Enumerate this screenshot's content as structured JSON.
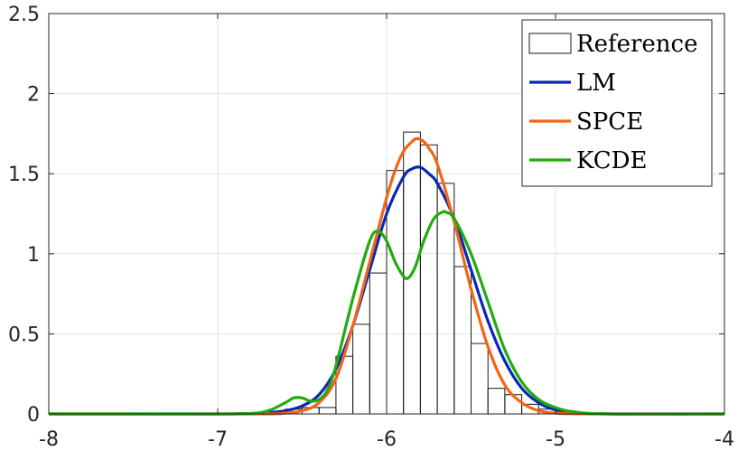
{
  "chart_data": {
    "type": "bar",
    "xlim": [
      -8,
      -4
    ],
    "ylim": [
      0,
      2.5
    ],
    "grid": true,
    "legend_position": "top-right",
    "x_ticks": [
      -8,
      -7,
      -6,
      -5,
      -4
    ],
    "x_tick_labels": [
      "-8",
      "-7",
      "-6",
      "-5",
      "-4"
    ],
    "y_ticks": [
      0,
      0.5,
      1,
      1.5,
      2,
      2.5
    ],
    "y_tick_labels": [
      "0",
      "0.5",
      "1",
      "1.5",
      "2",
      "2.5"
    ],
    "legend": [
      "Reference",
      "LM",
      "SPCE",
      "KCDE"
    ],
    "histogram": {
      "name": "Reference",
      "bin_edges": [
        -6.6,
        -6.5,
        -6.4,
        -6.3,
        -6.2,
        -6.1,
        -6.0,
        -5.9,
        -5.8,
        -5.7,
        -5.6,
        -5.5,
        -5.4,
        -5.3,
        -5.2,
        -5.1,
        -5.0
      ],
      "values": [
        0.03,
        0.04,
        0.04,
        0.36,
        0.56,
        0.88,
        1.52,
        1.76,
        1.68,
        1.44,
        0.92,
        0.44,
        0.16,
        0.12,
        0.06,
        0.03
      ]
    },
    "series": [
      {
        "name": "LM",
        "color": "#0a28b4",
        "x": [
          -8,
          -7,
          -6.9,
          -6.8,
          -6.7,
          -6.6,
          -6.5,
          -6.4,
          -6.3,
          -6.2,
          -6.1,
          -6.0,
          -5.9,
          -5.85,
          -5.8,
          -5.75,
          -5.7,
          -5.6,
          -5.5,
          -5.4,
          -5.3,
          -5.2,
          -5.1,
          -5.0,
          -4.9,
          -4.8,
          -4.6,
          -4
        ],
        "y": [
          0,
          0,
          0.001,
          0.003,
          0.008,
          0.02,
          0.05,
          0.12,
          0.28,
          0.55,
          0.9,
          1.25,
          1.48,
          1.53,
          1.54,
          1.5,
          1.44,
          1.22,
          0.9,
          0.58,
          0.33,
          0.16,
          0.07,
          0.025,
          0.008,
          0.002,
          0,
          0
        ]
      },
      {
        "name": "SPCE",
        "color": "#f56414",
        "x": [
          -8,
          -6.8,
          -6.6,
          -6.5,
          -6.4,
          -6.3,
          -6.2,
          -6.1,
          -6.0,
          -5.95,
          -5.9,
          -5.85,
          -5.82,
          -5.78,
          -5.75,
          -5.7,
          -5.6,
          -5.5,
          -5.4,
          -5.3,
          -5.2,
          -5.1,
          -5.0,
          -4.9,
          -4.7,
          -4
        ],
        "y": [
          0,
          0,
          0.005,
          0.02,
          0.07,
          0.22,
          0.55,
          0.95,
          1.35,
          1.52,
          1.64,
          1.7,
          1.72,
          1.7,
          1.66,
          1.56,
          1.2,
          0.78,
          0.42,
          0.18,
          0.07,
          0.02,
          0.005,
          0.001,
          0,
          0
        ]
      },
      {
        "name": "KCDE",
        "color": "#22aa0f",
        "x": [
          -8,
          -7,
          -6.8,
          -6.7,
          -6.6,
          -6.55,
          -6.5,
          -6.45,
          -6.4,
          -6.35,
          -6.3,
          -6.2,
          -6.1,
          -6.05,
          -6.0,
          -5.95,
          -5.9,
          -5.87,
          -5.83,
          -5.78,
          -5.72,
          -5.67,
          -5.65,
          -5.6,
          -5.5,
          -5.4,
          -5.3,
          -5.2,
          -5.1,
          -5.0,
          -4.9,
          -4.7,
          -4
        ],
        "y": [
          0,
          0,
          0.003,
          0.02,
          0.07,
          0.1,
          0.1,
          0.08,
          0.09,
          0.15,
          0.3,
          0.72,
          1.08,
          1.14,
          1.08,
          0.95,
          0.86,
          0.85,
          0.92,
          1.08,
          1.22,
          1.26,
          1.26,
          1.22,
          1.0,
          0.7,
          0.4,
          0.2,
          0.09,
          0.04,
          0.015,
          0,
          0
        ]
      }
    ]
  }
}
